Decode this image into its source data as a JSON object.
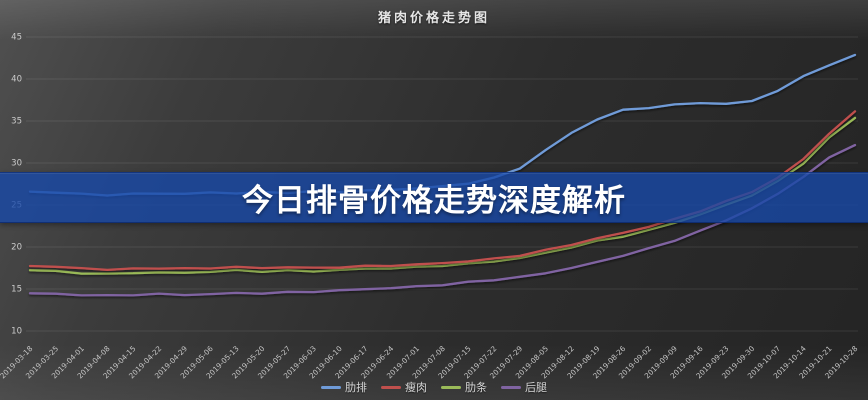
{
  "title": "猪肉价格走势图",
  "banner": {
    "text": "今日排骨价格走势深度解析",
    "bg_color": "#1848a7"
  },
  "legend": {
    "items": [
      "肋排",
      "瘦肉",
      "肋条",
      "后腿"
    ]
  },
  "chart_data": {
    "type": "line",
    "title": "猪肉价格走势图",
    "xlabel": "",
    "ylabel": "",
    "ylim": [
      10,
      45
    ],
    "yticks": [
      45,
      40,
      35,
      30,
      25,
      20,
      15,
      10
    ],
    "grid": true,
    "legend_position": "bottom",
    "categories": [
      "2019-03-18",
      "2019-03-25",
      "2019-04-01",
      "2019-04-08",
      "2019-04-15",
      "2019-04-22",
      "2019-04-29",
      "2019-05-06",
      "2019-05-13",
      "2019-05-20",
      "2019-05-27",
      "2019-06-03",
      "2019-06-10",
      "2019-06-17",
      "2019-06-24",
      "2019-07-01",
      "2019-07-08",
      "2019-07-15",
      "2019-07-22",
      "2019-07-29",
      "2019-08-05",
      "2019-08-12",
      "2019-08-19",
      "2019-08-26",
      "2019-09-02",
      "2019-09-09",
      "2019-09-16",
      "2019-09-23",
      "2019-09-30",
      "2019-10-07",
      "2019-10-14",
      "2019-10-21",
      "2019-10-28"
    ],
    "series": [
      {
        "name": "肋排",
        "color": "#6f9bd8",
        "values": [
          26.6,
          26.5,
          26.3,
          26.2,
          26.3,
          26.4,
          26.3,
          26.5,
          26.4,
          26.5,
          26.5,
          26.6,
          26.6,
          26.7,
          26.8,
          27.0,
          27.2,
          27.6,
          28.2,
          29.4,
          31.5,
          33.6,
          35.2,
          36.3,
          36.6,
          36.9,
          37.2,
          37.0,
          37.4,
          38.6,
          40.3,
          41.7,
          42.8
        ]
      },
      {
        "name": "瘦肉",
        "color": "#c0504d",
        "values": [
          17.8,
          17.6,
          17.5,
          17.3,
          17.4,
          17.5,
          17.4,
          17.5,
          17.6,
          17.5,
          17.6,
          17.5,
          17.6,
          17.7,
          17.8,
          17.9,
          18.1,
          18.3,
          18.6,
          19.0,
          19.6,
          20.3,
          21.0,
          21.7,
          22.4,
          23.3,
          24.3,
          25.4,
          26.6,
          28.2,
          30.5,
          33.5,
          36.1
        ]
      },
      {
        "name": "肋条",
        "color": "#9bbb59",
        "values": [
          17.3,
          17.1,
          16.9,
          16.8,
          16.9,
          17.0,
          16.9,
          17.1,
          17.2,
          17.1,
          17.2,
          17.1,
          17.3,
          17.4,
          17.5,
          17.6,
          17.8,
          18.0,
          18.3,
          18.7,
          19.3,
          20.0,
          20.7,
          21.3,
          22.0,
          22.9,
          23.9,
          25.0,
          26.2,
          27.8,
          30.0,
          33.0,
          35.4
        ]
      },
      {
        "name": "后腿",
        "color": "#8064a2",
        "values": [
          14.5,
          14.4,
          14.3,
          14.2,
          14.3,
          14.4,
          14.3,
          14.4,
          14.5,
          14.5,
          14.6,
          14.7,
          14.8,
          15.0,
          15.1,
          15.3,
          15.5,
          15.8,
          16.1,
          16.4,
          16.9,
          17.5,
          18.2,
          19.0,
          19.8,
          20.8,
          21.9,
          23.2,
          24.6,
          26.3,
          28.4,
          30.6,
          32.2
        ]
      }
    ]
  }
}
